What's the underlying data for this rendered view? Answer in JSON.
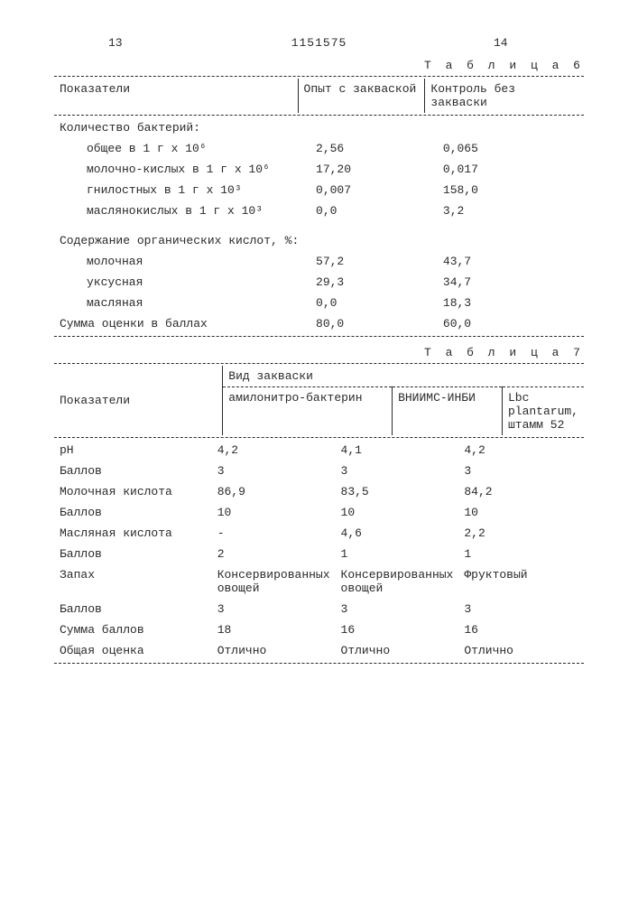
{
  "header": {
    "page_left": "13",
    "doc_number": "1151575",
    "page_right": "14"
  },
  "table6": {
    "caption": "Т а б л и ц а  6",
    "head": {
      "c1": "Показатели",
      "c2": "Опыт с закваской",
      "c3": "Контроль без закваски"
    },
    "section1_title": "Количество бактерий:",
    "rows1": [
      {
        "label": "общее в 1 г х 10⁶",
        "v1": "2,56",
        "v2": "0,065"
      },
      {
        "label": "молочно-кислых в 1 г х 10⁶",
        "v1": "17,20",
        "v2": "0,017"
      },
      {
        "label": "гнилостных в 1 г х 10³",
        "v1": "0,007",
        "v2": "158,0"
      },
      {
        "label": "маслянокислых в 1 г х 10³",
        "v1": "0,0",
        "v2": "3,2"
      }
    ],
    "section2_title": "Содержание органических кислот, %:",
    "rows2": [
      {
        "label": "молочная",
        "v1": "57,2",
        "v2": "43,7"
      },
      {
        "label": "уксусная",
        "v1": "29,3",
        "v2": "34,7"
      },
      {
        "label": "масляная",
        "v1": "0,0",
        "v2": "18,3"
      }
    ],
    "sum_row": {
      "label": "Сумма оценки в баллах",
      "v1": "80,0",
      "v2": "60,0"
    }
  },
  "table7": {
    "caption": "Т а б л и ц а  7",
    "head": {
      "c1": "Показатели",
      "group": "Вид закваски",
      "s1": "амилонитро-бактерин",
      "s2": "ВНИИМС-ИНБИ",
      "s3": "Lbc plantarum, штамм 52"
    },
    "rows": [
      {
        "label": "pH",
        "v1": "4,2",
        "v2": "4,1",
        "v3": "4,2"
      },
      {
        "label": "Баллов",
        "v1": "3",
        "v2": "3",
        "v3": "3"
      },
      {
        "label": "Молочная кислота",
        "v1": "86,9",
        "v2": "83,5",
        "v3": "84,2"
      },
      {
        "label": "Баллов",
        "v1": "10",
        "v2": "10",
        "v3": "10"
      },
      {
        "label": "Масляная кислота",
        "v1": "-",
        "v2": "4,6",
        "v3": "2,2"
      },
      {
        "label": "Баллов",
        "v1": "2",
        "v2": "1",
        "v3": "1"
      },
      {
        "label": "Запах",
        "v1": "Консервированных овощей",
        "v2": "Консервированных овощей",
        "v3": "Фруктовый"
      },
      {
        "label": "Баллов",
        "v1": "3",
        "v2": "3",
        "v3": "3"
      },
      {
        "label": "Сумма баллов",
        "v1": "18",
        "v2": "16",
        "v3": "16"
      },
      {
        "label": "Общая оценка",
        "v1": "Отлично",
        "v2": "Отлично",
        "v3": "Отлично"
      }
    ]
  }
}
